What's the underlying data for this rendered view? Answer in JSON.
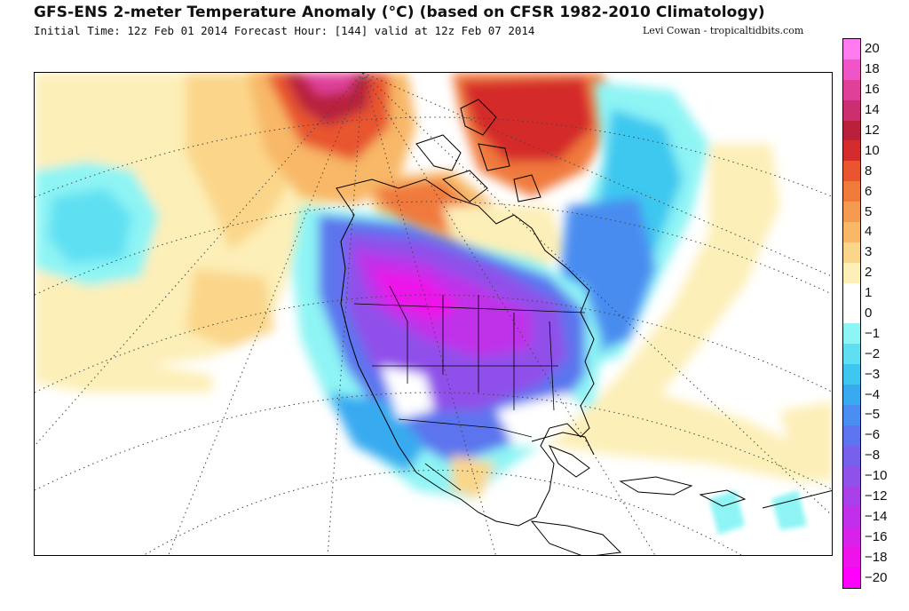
{
  "header": {
    "title": "GFS-ENS 2-meter Temperature Anomaly (°C) (based on CFSR 1982-2010 Climatology)",
    "subtitle": "Initial Time: 12z Feb 01 2014 Forecast Hour: [144] valid at 12z Feb 07 2014",
    "credit": "Levi Cowan - tropicaltidbits.com"
  },
  "colorbar": {
    "levels": [
      {
        "label": "20",
        "color": "#ff7cf0"
      },
      {
        "label": "18",
        "color": "#f055c8"
      },
      {
        "label": "16",
        "color": "#e0409a"
      },
      {
        "label": "14",
        "color": "#cc2f70"
      },
      {
        "label": "12",
        "color": "#b8203c"
      },
      {
        "label": "10",
        "color": "#d42c2c"
      },
      {
        "label": "8",
        "color": "#e8552e"
      },
      {
        "label": "6",
        "color": "#f07a3c"
      },
      {
        "label": "5",
        "color": "#f59a52"
      },
      {
        "label": "4",
        "color": "#f8b868"
      },
      {
        "label": "3",
        "color": "#fbd68a"
      },
      {
        "label": "2",
        "color": "#fdefb8"
      },
      {
        "label": "1",
        "color": "#ffffff"
      },
      {
        "label": "0",
        "color": "#ffffff"
      },
      {
        "label": "-1",
        "color": "#8ef4f4"
      },
      {
        "label": "-2",
        "color": "#5fe0f2"
      },
      {
        "label": "-3",
        "color": "#3ec8f0"
      },
      {
        "label": "-4",
        "color": "#38aaf0"
      },
      {
        "label": "-5",
        "color": "#4a8cf0"
      },
      {
        "label": "-6",
        "color": "#5c74ee"
      },
      {
        "label": "-8",
        "color": "#7660ec"
      },
      {
        "label": "-10",
        "color": "#9050ea"
      },
      {
        "label": "-12",
        "color": "#a840ea"
      },
      {
        "label": "-14",
        "color": "#c030ea"
      },
      {
        "label": "-16",
        "color": "#d822ea"
      },
      {
        "label": "-18",
        "color": "#ec14ea"
      },
      {
        "label": "-20",
        "color": "#ff00ff"
      }
    ]
  }
}
